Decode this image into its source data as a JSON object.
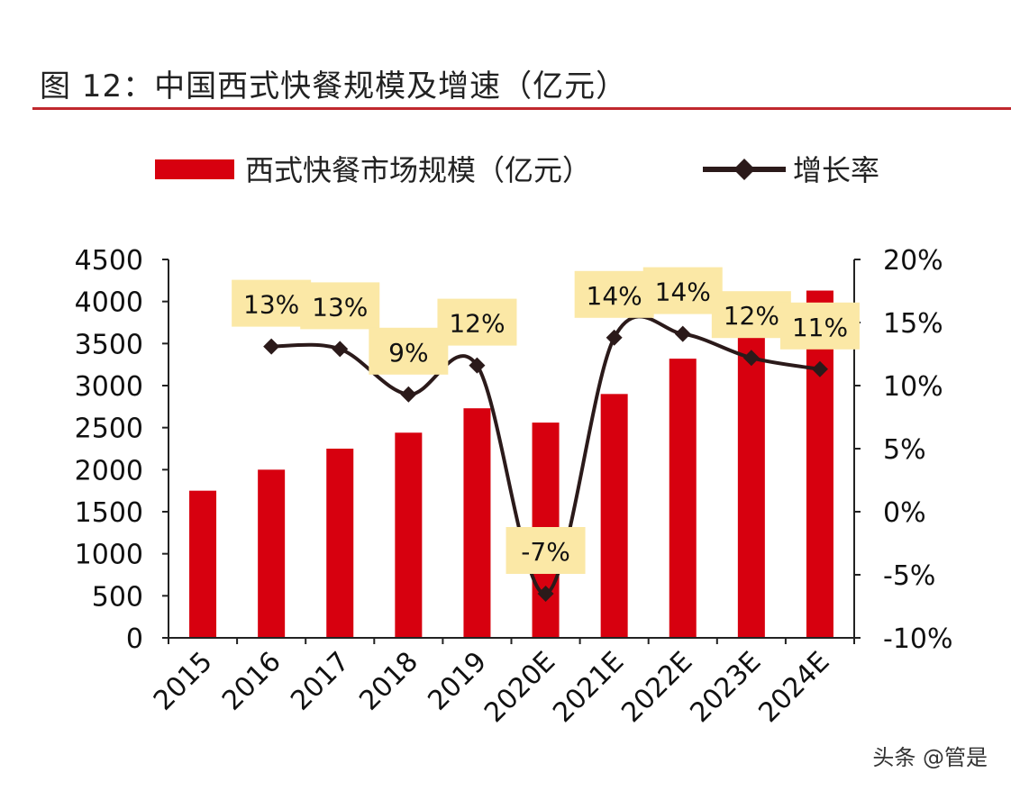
{
  "title": "图 12：中国西式快餐规模及增速（亿元）",
  "watermark": "头条 @管是",
  "colors": {
    "bar": "#d7000f",
    "line": "#2b1a1a",
    "label_box": "#fbe8a6",
    "rule": "#c0282d"
  },
  "chart_data": {
    "type": "bar+line",
    "categories": [
      "2015",
      "2016",
      "2017",
      "2018",
      "2019",
      "2020E",
      "2021E",
      "2022E",
      "2023E",
      "2024E"
    ],
    "series": [
      {
        "name": "西式快餐市场规模（亿元）",
        "type": "bar",
        "axis": "left",
        "values": [
          1750,
          2000,
          2250,
          2440,
          2730,
          2560,
          2900,
          3320,
          3720,
          4130
        ]
      },
      {
        "name": "增长率",
        "type": "line",
        "axis": "right",
        "marker": "diamond",
        "smooth": true,
        "values": [
          null,
          13.1,
          12.9,
          9.3,
          11.6,
          -6.5,
          13.8,
          14.1,
          12.2,
          11.3
        ],
        "data_labels": [
          null,
          "13%",
          "13%",
          "9%",
          "12%",
          "-7%",
          "14%",
          "14%",
          "12%",
          "11%"
        ]
      }
    ],
    "y_left": {
      "range": [
        0,
        4500
      ],
      "ticks": [
        "0",
        "500",
        "1000",
        "1500",
        "2000",
        "2500",
        "3000",
        "3500",
        "4000",
        "4500"
      ]
    },
    "y_right": {
      "range": [
        -10,
        20
      ],
      "ticks": [
        "-10%",
        "-5%",
        "0%",
        "5%",
        "10%",
        "15%",
        "20%"
      ]
    },
    "legend": "top",
    "grid": false
  }
}
